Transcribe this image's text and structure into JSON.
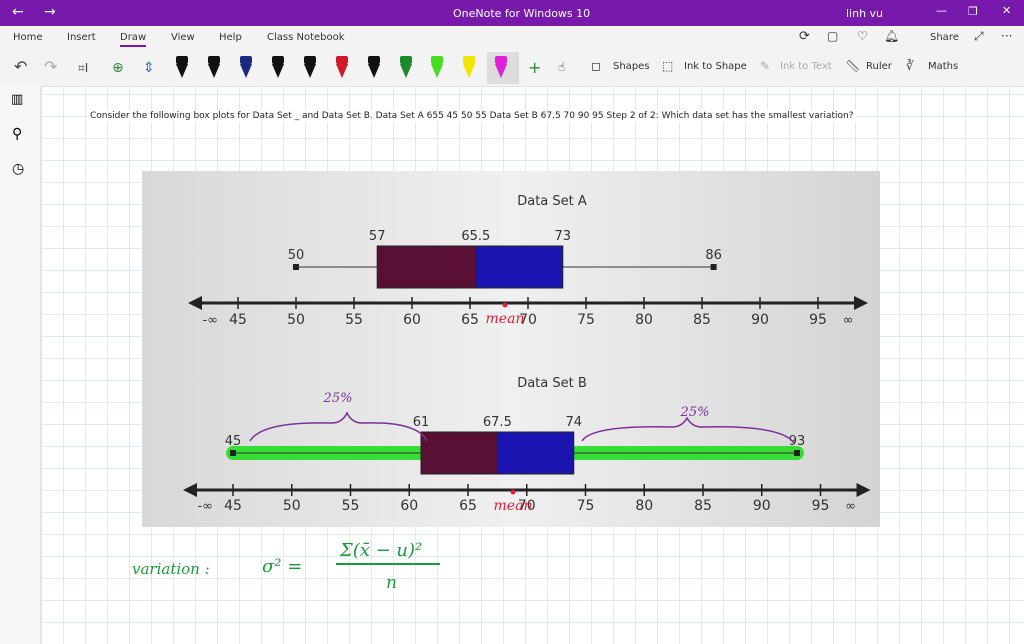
{
  "title_bar": {
    "title": "OneNote for Windows 10",
    "user": "linh vu"
  },
  "menu": {
    "tabs": [
      "Home",
      "Insert",
      "Draw",
      "View",
      "Help",
      "Class Notebook"
    ],
    "share": "Share"
  },
  "toolbar": {
    "tools": [
      "Shapes",
      "Ink to Shape",
      "Ink to Text",
      "Ruler",
      "Maths"
    ]
  },
  "note": {
    "text": "Consider the following box plots for Data Set _ and Data Set B. Data Set A 655 45 50 55 Data Set B 67.5 70 90 95 Step 2 of 2: Which data set has the smallest variation?"
  },
  "figure": {
    "plots": [
      {
        "title": "Data Set A",
        "min": 50,
        "q1": 57,
        "median": 65.5,
        "q3": 73,
        "max": 86
      },
      {
        "title": "Data Set B",
        "min": 45,
        "q1": 61,
        "median": 67.5,
        "q3": 74,
        "max": 93
      }
    ],
    "axis": {
      "ticks": [
        45,
        50,
        55,
        60,
        65,
        70,
        75,
        80,
        85,
        90,
        95
      ],
      "left": "-∞",
      "right": "∞"
    }
  },
  "ink": {
    "annotations": [
      "25%",
      "25%",
      "mean",
      "mean"
    ],
    "variation": "variation :",
    "formula_lhs": "σ² =",
    "formula_num": "Σ(x̄ − u)²",
    "formula_den": "n"
  }
}
